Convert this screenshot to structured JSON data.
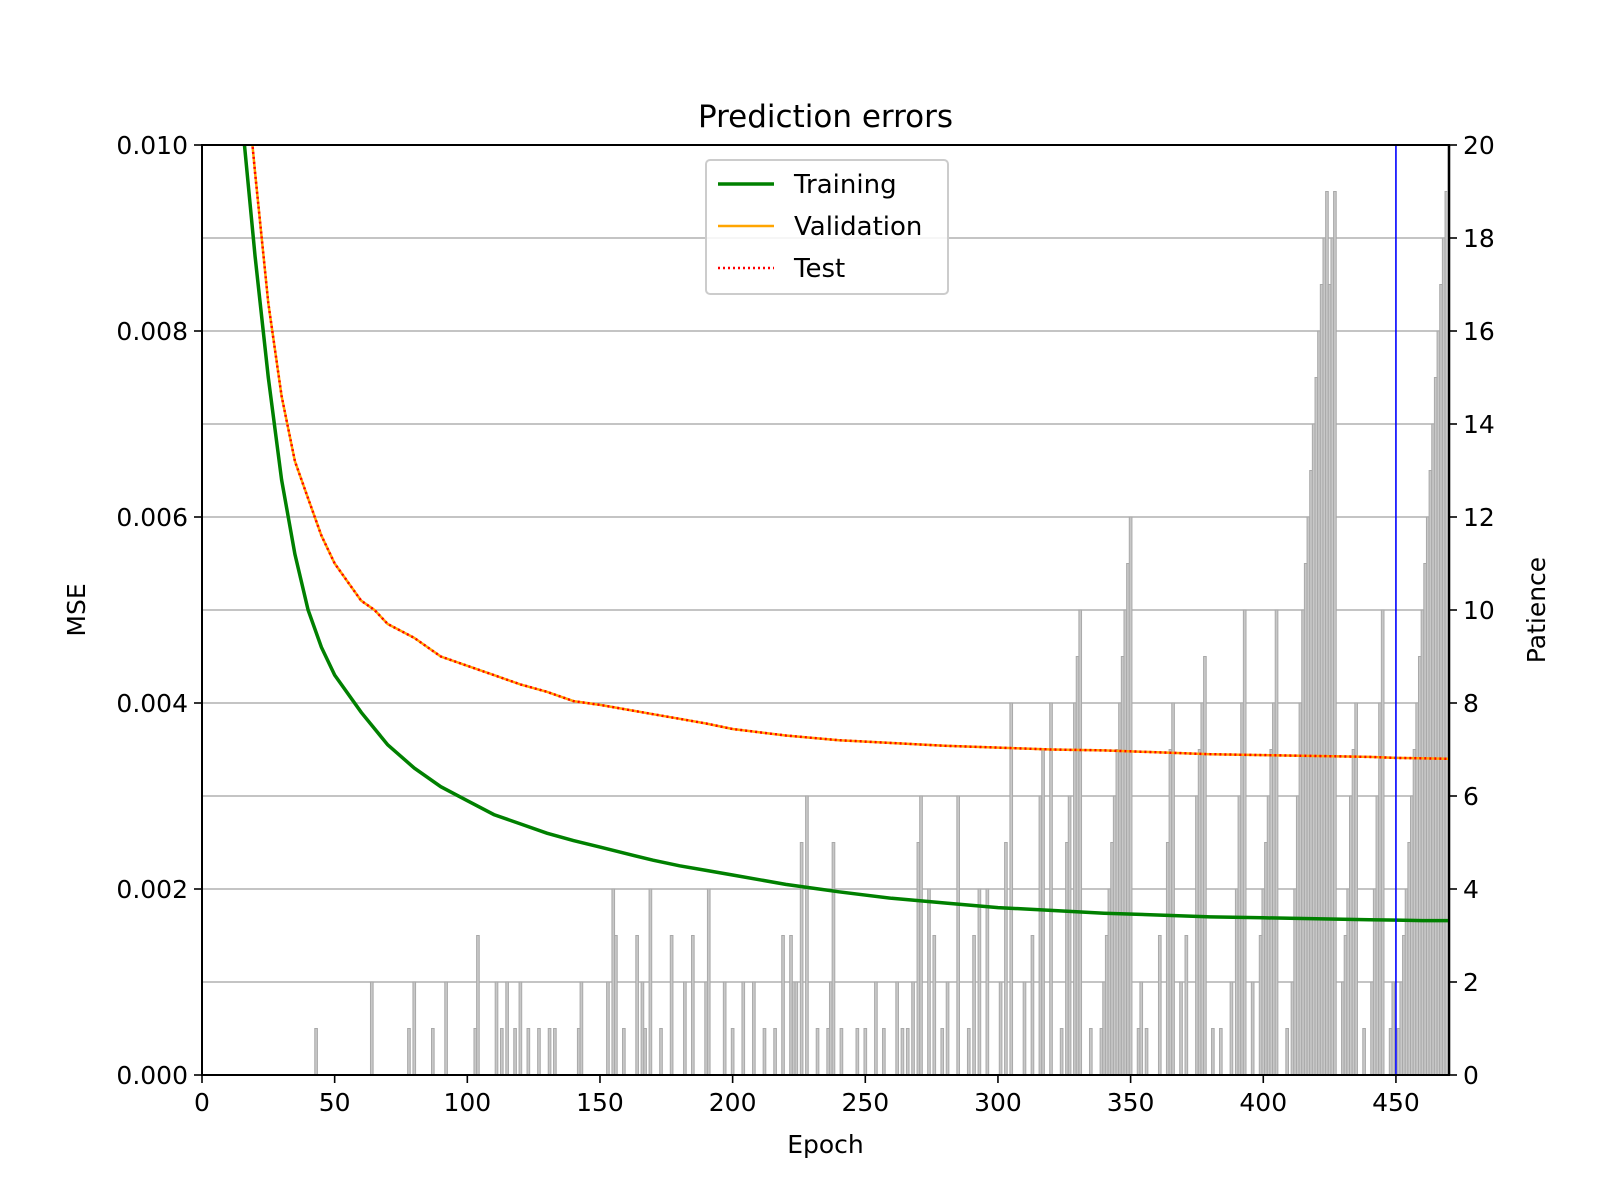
{
  "chart_data": {
    "type": "line",
    "title": "Prediction errors",
    "xlabel": "Epoch",
    "ylabel": "MSE",
    "y2label": "Patience",
    "xlim": [
      0,
      470
    ],
    "ylim": [
      0,
      0.01
    ],
    "y2lim": [
      0,
      20
    ],
    "x_ticks": [
      "0",
      "50",
      "100",
      "150",
      "200",
      "250",
      "300",
      "350",
      "400",
      "450"
    ],
    "y_ticks": [
      "0.000",
      "0.002",
      "0.004",
      "0.006",
      "0.008",
      "0.010"
    ],
    "y2_ticks": [
      "0",
      "2",
      "4",
      "6",
      "8",
      "10",
      "12",
      "14",
      "16",
      "18",
      "20"
    ],
    "grid": "horizontal (right axis)",
    "legend_position": "upper center",
    "vline_epoch": 450,
    "colors": {
      "training": "#008000",
      "validation": "#ffa500",
      "test": "#ff0000",
      "patience_fill": "#c8c8c8",
      "patience_edge": "#a9a9a9",
      "vline": "#0000ff",
      "grid": "#b0b0b0"
    },
    "series": [
      {
        "name": "Training",
        "style": "solid",
        "points": [
          [
            15,
            0.0103
          ],
          [
            20,
            0.0088
          ],
          [
            25,
            0.0075
          ],
          [
            30,
            0.0064
          ],
          [
            35,
            0.0056
          ],
          [
            40,
            0.005
          ],
          [
            45,
            0.0046
          ],
          [
            50,
            0.0043
          ],
          [
            60,
            0.0039
          ],
          [
            70,
            0.00355
          ],
          [
            80,
            0.0033
          ],
          [
            90,
            0.0031
          ],
          [
            100,
            0.00295
          ],
          [
            110,
            0.0028
          ],
          [
            120,
            0.0027
          ],
          [
            130,
            0.0026
          ],
          [
            140,
            0.00252
          ],
          [
            150,
            0.00245
          ],
          [
            160,
            0.00238
          ],
          [
            170,
            0.00231
          ],
          [
            180,
            0.00225
          ],
          [
            190,
            0.0022
          ],
          [
            200,
            0.00215
          ],
          [
            220,
            0.00205
          ],
          [
            240,
            0.00197
          ],
          [
            260,
            0.0019
          ],
          [
            280,
            0.00185
          ],
          [
            300,
            0.0018
          ],
          [
            320,
            0.00177
          ],
          [
            340,
            0.00174
          ],
          [
            360,
            0.00172
          ],
          [
            380,
            0.0017
          ],
          [
            400,
            0.00169
          ],
          [
            420,
            0.00168
          ],
          [
            440,
            0.00167
          ],
          [
            460,
            0.00166
          ],
          [
            470,
            0.00166
          ]
        ]
      },
      {
        "name": "Validation",
        "style": "solid",
        "points": [
          [
            18,
            0.0103
          ],
          [
            20,
            0.0097
          ],
          [
            25,
            0.0083
          ],
          [
            30,
            0.0073
          ],
          [
            35,
            0.0066
          ],
          [
            40,
            0.0062
          ],
          [
            45,
            0.0058
          ],
          [
            50,
            0.0055
          ],
          [
            55,
            0.0053
          ],
          [
            60,
            0.0051
          ],
          [
            65,
            0.005
          ],
          [
            70,
            0.00485
          ],
          [
            80,
            0.0047
          ],
          [
            90,
            0.0045
          ],
          [
            100,
            0.0044
          ],
          [
            110,
            0.0043
          ],
          [
            120,
            0.0042
          ],
          [
            130,
            0.00412
          ],
          [
            140,
            0.00402
          ],
          [
            150,
            0.00398
          ],
          [
            160,
            0.00393
          ],
          [
            170,
            0.00388
          ],
          [
            180,
            0.00383
          ],
          [
            190,
            0.00378
          ],
          [
            200,
            0.00372
          ],
          [
            220,
            0.00365
          ],
          [
            240,
            0.0036
          ],
          [
            260,
            0.00357
          ],
          [
            280,
            0.00354
          ],
          [
            300,
            0.00352
          ],
          [
            320,
            0.0035
          ],
          [
            340,
            0.00349
          ],
          [
            360,
            0.00347
          ],
          [
            380,
            0.00345
          ],
          [
            400,
            0.00344
          ],
          [
            420,
            0.00343
          ],
          [
            440,
            0.00342
          ],
          [
            450,
            0.00341
          ],
          [
            470,
            0.0034
          ]
        ]
      },
      {
        "name": "Test",
        "style": "dotted",
        "points": [
          [
            18,
            0.0103
          ],
          [
            20,
            0.0097
          ],
          [
            25,
            0.0083
          ],
          [
            30,
            0.0073
          ],
          [
            35,
            0.0066
          ],
          [
            40,
            0.0062
          ],
          [
            45,
            0.0058
          ],
          [
            50,
            0.0055
          ],
          [
            55,
            0.0053
          ],
          [
            60,
            0.0051
          ],
          [
            65,
            0.005
          ],
          [
            70,
            0.00485
          ],
          [
            80,
            0.0047
          ],
          [
            90,
            0.0045
          ],
          [
            100,
            0.0044
          ],
          [
            110,
            0.0043
          ],
          [
            120,
            0.0042
          ],
          [
            130,
            0.00412
          ],
          [
            140,
            0.00402
          ],
          [
            150,
            0.00398
          ],
          [
            160,
            0.00393
          ],
          [
            170,
            0.00388
          ],
          [
            180,
            0.00383
          ],
          [
            190,
            0.00378
          ],
          [
            200,
            0.00372
          ],
          [
            220,
            0.00365
          ],
          [
            240,
            0.0036
          ],
          [
            260,
            0.00357
          ],
          [
            280,
            0.00354
          ],
          [
            300,
            0.00352
          ],
          [
            320,
            0.0035
          ],
          [
            340,
            0.00349
          ],
          [
            360,
            0.00347
          ],
          [
            380,
            0.00345
          ],
          [
            400,
            0.00344
          ],
          [
            420,
            0.00343
          ],
          [
            440,
            0.00342
          ],
          [
            450,
            0.00341
          ],
          [
            470,
            0.0034
          ]
        ]
      }
    ],
    "patience_spikes": [
      [
        43,
        1
      ],
      [
        64,
        2
      ],
      [
        78,
        1
      ],
      [
        80,
        2
      ],
      [
        87,
        1
      ],
      [
        92,
        2
      ],
      [
        103,
        1
      ],
      [
        104,
        3
      ],
      [
        111,
        2
      ],
      [
        113,
        1
      ],
      [
        115,
        2
      ],
      [
        118,
        1
      ],
      [
        120,
        2
      ],
      [
        123,
        1
      ],
      [
        127,
        1
      ],
      [
        131,
        1
      ],
      [
        133,
        1
      ],
      [
        142,
        1
      ],
      [
        143,
        2
      ],
      [
        153,
        2
      ],
      [
        155,
        4
      ],
      [
        156,
        3
      ],
      [
        159,
        1
      ],
      [
        164,
        3
      ],
      [
        166,
        2
      ],
      [
        167,
        1
      ],
      [
        169,
        4
      ],
      [
        173,
        1
      ],
      [
        177,
        3
      ],
      [
        182,
        2
      ],
      [
        185,
        3
      ],
      [
        190,
        2
      ],
      [
        191,
        4
      ],
      [
        197,
        2
      ],
      [
        200,
        1
      ],
      [
        204,
        2
      ],
      [
        208,
        2
      ],
      [
        212,
        1
      ],
      [
        216,
        1
      ],
      [
        219,
        3
      ],
      [
        222,
        3
      ],
      [
        223,
        2
      ],
      [
        224,
        2
      ],
      [
        226,
        5
      ],
      [
        228,
        6
      ],
      [
        232,
        1
      ],
      [
        236,
        1
      ],
      [
        237,
        2
      ],
      [
        238,
        5
      ],
      [
        241,
        1
      ],
      [
        247,
        1
      ],
      [
        250,
        1
      ],
      [
        254,
        2
      ],
      [
        257,
        1
      ],
      [
        262,
        2
      ],
      [
        264,
        1
      ],
      [
        266,
        1
      ],
      [
        268,
        2
      ],
      [
        270,
        5
      ],
      [
        271,
        6
      ],
      [
        274,
        4
      ],
      [
        276,
        3
      ],
      [
        279,
        1
      ],
      [
        281,
        2
      ],
      [
        285,
        6
      ],
      [
        289,
        1
      ],
      [
        291,
        3
      ],
      [
        293,
        4
      ],
      [
        296,
        4
      ],
      [
        301,
        2
      ],
      [
        303,
        5
      ],
      [
        305,
        8
      ],
      [
        310,
        2
      ],
      [
        313,
        3
      ],
      [
        316,
        6
      ],
      [
        317,
        7
      ],
      [
        320,
        8
      ],
      [
        324,
        1
      ],
      [
        326,
        5
      ],
      [
        327,
        6
      ],
      [
        329,
        8
      ],
      [
        330,
        9
      ],
      [
        331,
        10
      ],
      [
        335,
        1
      ],
      [
        339,
        1
      ],
      [
        340,
        2
      ],
      [
        341,
        3
      ],
      [
        342,
        4
      ],
      [
        343,
        5
      ],
      [
        344,
        6
      ],
      [
        345,
        7
      ],
      [
        346,
        8
      ],
      [
        347,
        9
      ],
      [
        348,
        10
      ],
      [
        349,
        11
      ],
      [
        350,
        12
      ],
      [
        353,
        1
      ],
      [
        354,
        2
      ],
      [
        356,
        1
      ],
      [
        361,
        3
      ],
      [
        364,
        5
      ],
      [
        365,
        7
      ],
      [
        366,
        8
      ],
      [
        369,
        2
      ],
      [
        371,
        3
      ],
      [
        375,
        6
      ],
      [
        376,
        7
      ],
      [
        377,
        8
      ],
      [
        378,
        9
      ],
      [
        381,
        1
      ],
      [
        384,
        1
      ],
      [
        388,
        2
      ],
      [
        390,
        4
      ],
      [
        391,
        6
      ],
      [
        392,
        8
      ],
      [
        393,
        10
      ],
      [
        396,
        2
      ],
      [
        399,
        3
      ],
      [
        400,
        4
      ],
      [
        401,
        5
      ],
      [
        402,
        6
      ],
      [
        403,
        7
      ],
      [
        404,
        8
      ],
      [
        405,
        10
      ],
      [
        409,
        1
      ],
      [
        411,
        2
      ],
      [
        412,
        4
      ],
      [
        413,
        6
      ],
      [
        414,
        8
      ],
      [
        415,
        10
      ],
      [
        416,
        11
      ],
      [
        417,
        12
      ],
      [
        418,
        13
      ],
      [
        419,
        14
      ],
      [
        420,
        15
      ],
      [
        421,
        16
      ],
      [
        422,
        17
      ],
      [
        423,
        18
      ],
      [
        424,
        19
      ],
      [
        425,
        17
      ],
      [
        426,
        18
      ],
      [
        427,
        19
      ],
      [
        430,
        2
      ],
      [
        431,
        3
      ],
      [
        432,
        4
      ],
      [
        433,
        6
      ],
      [
        434,
        7
      ],
      [
        435,
        8
      ],
      [
        438,
        1
      ],
      [
        441,
        2
      ],
      [
        442,
        4
      ],
      [
        443,
        6
      ],
      [
        444,
        8
      ],
      [
        445,
        10
      ],
      [
        448,
        1
      ],
      [
        449,
        2
      ],
      [
        450,
        0
      ],
      [
        451,
        1
      ],
      [
        452,
        2
      ],
      [
        453,
        3
      ],
      [
        454,
        4
      ],
      [
        455,
        5
      ],
      [
        456,
        6
      ],
      [
        457,
        7
      ],
      [
        458,
        8
      ],
      [
        459,
        9
      ],
      [
        460,
        10
      ],
      [
        461,
        11
      ],
      [
        462,
        12
      ],
      [
        463,
        13
      ],
      [
        464,
        14
      ],
      [
        465,
        15
      ],
      [
        466,
        16
      ],
      [
        467,
        17
      ],
      [
        468,
        18
      ],
      [
        469,
        19
      ],
      [
        470,
        20
      ]
    ]
  }
}
